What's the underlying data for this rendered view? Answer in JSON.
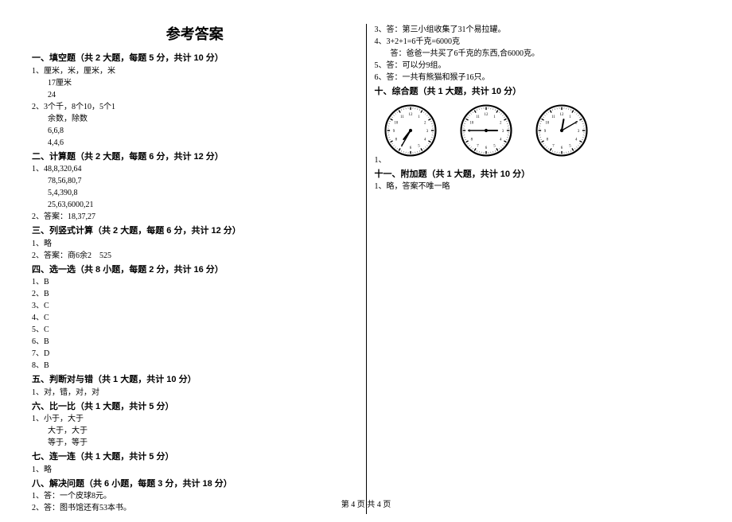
{
  "title": "参考答案",
  "footer": "第 4 页 共 4 页",
  "left": {
    "s1": {
      "header": "一、填空题（共 2 大题，每题 5 分，共计 10 分）",
      "l1": "1、厘米，米，厘米，米",
      "l2": "17厘米",
      "l3": "24",
      "l4": "2、3个千，8个10，5个1",
      "l5": "余数，除数",
      "l6": "6,6,8",
      "l7": "4,4,6"
    },
    "s2": {
      "header": "二、计算题（共 2 大题，每题 6 分，共计 12 分）",
      "l1": "1、48,8,320,64",
      "l2": "78,56,80,7",
      "l3": "5,4,390,8",
      "l4": "25,63,6000,21",
      "l5": "2、答案：18,37,27"
    },
    "s3": {
      "header": "三、列竖式计算（共 2 大题，每题 6 分，共计 12 分）",
      "l1": "1、略",
      "l2": "2、答案：商6余2　525"
    },
    "s4": {
      "header": "四、选一选（共 8 小题，每题 2 分，共计 16 分）",
      "l1": "1、B",
      "l2": "2、B",
      "l3": "3、C",
      "l4": "4、C",
      "l5": "5、C",
      "l6": "6、B",
      "l7": "7、D",
      "l8": "8、B"
    },
    "s5": {
      "header": "五、判断对与错（共 1 大题，共计 10 分）",
      "l1": "1、对，错，对，对"
    },
    "s6": {
      "header": "六、比一比（共 1 大题，共计 5 分）",
      "l1": "1、小于，大于",
      "l2": "大于，大于",
      "l3": "等于，等于"
    },
    "s7": {
      "header": "七、连一连（共 1 大题，共计 5 分）",
      "l1": "1、略"
    },
    "s8": {
      "header": "八、解决问题（共 6 小题，每题 3 分，共计 18 分）",
      "l1": "1、答：一个皮球8元。",
      "l2": "2、答：图书馆还有53本书。"
    }
  },
  "right": {
    "top": {
      "l1": "3、答：第三小组收集了31个易拉罐。",
      "l2": "4、3+2+1=6千克=6000克",
      "l3": "答：爸爸一共买了6千克的东西,合6000克。",
      "l4": "5、答：可以分9组。",
      "l5": "6、答：一共有熊猫和猴子16只。"
    },
    "s10": {
      "header": "十、综合题（共 1 大题，共计 10 分）",
      "label": "1、"
    },
    "s11": {
      "header": "十一、附加题（共 1 大题，共计 10 分）",
      "l1": "1、略，答案不唯一略"
    }
  },
  "clocks": [
    {
      "hour_angle": 218,
      "minute_angle": 210
    },
    {
      "hour_angle": 90,
      "minute_angle": 270
    },
    {
      "hour_angle": 10,
      "minute_angle": 60
    }
  ],
  "clock_style": {
    "face_fill": "#ffffff",
    "border_color": "#000000",
    "border_width": 3,
    "tick_color": "#000000",
    "hand_color": "#000000",
    "number_fontsize": 7
  }
}
